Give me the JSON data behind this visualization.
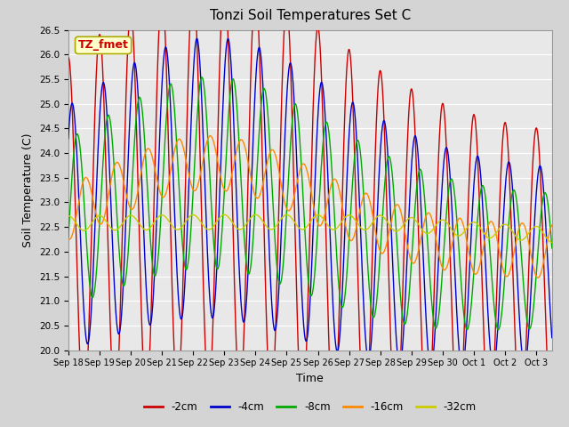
{
  "title": "Tonzi Soil Temperatures Set C",
  "xlabel": "Time",
  "ylabel": "Soil Temperature (C)",
  "ylim": [
    20.0,
    26.5
  ],
  "series_colors": [
    "#cc0000",
    "#0000cc",
    "#00aa00",
    "#ff8800",
    "#cccc00"
  ],
  "series_labels": [
    "-2cm",
    "-4cm",
    "-8cm",
    "-16cm",
    "-32cm"
  ],
  "annotation_text": "TZ_fmet",
  "annotation_bg": "#ffffcc",
  "annotation_border": "#aaaa00",
  "annotation_text_color": "#cc0000",
  "fig_bg": "#d4d4d4",
  "plot_bg": "#e8e8e8",
  "grid_color": "#ffffff",
  "tick_dates": [
    "Sep 18",
    "Sep 19",
    "Sep 20",
    "Sep 21",
    "Sep 22",
    "Sep 23",
    "Sep 24",
    "Sep 25",
    "Sep 26",
    "Sep 27",
    "Sep 28",
    "Sep 29",
    "Sep 30",
    "Oct 1",
    "Oct 2",
    "Oct 3"
  ]
}
